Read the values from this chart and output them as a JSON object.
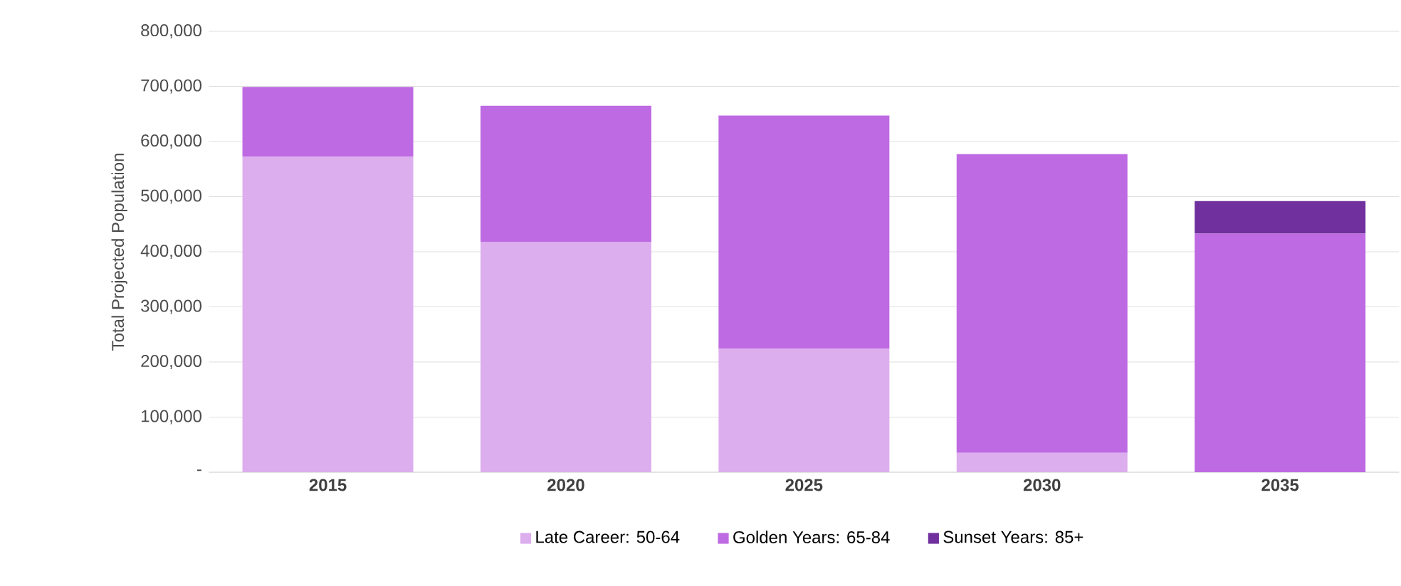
{
  "chart_data": {
    "type": "bar",
    "stacked": true,
    "ylabel": "Total Projected Population",
    "categories": [
      "2015",
      "2020",
      "2025",
      "2030",
      "2035"
    ],
    "series": [
      {
        "name": "Late Career: 50-64",
        "color": "#dcaeee",
        "values": [
          573000,
          418000,
          224000,
          35000,
          0
        ]
      },
      {
        "name": "Golden Years: 65-84",
        "color": "#be6ae2",
        "values": [
          126000,
          247000,
          423000,
          542000,
          433000
        ]
      },
      {
        "name": "Sunset Years: 85+",
        "color": "#70309d",
        "values": [
          0,
          0,
          0,
          0,
          59000
        ]
      }
    ],
    "ylim": [
      0,
      800000
    ],
    "yticks": [
      {
        "value": 0,
        "label": "-"
      },
      {
        "value": 100000,
        "label": "100,000"
      },
      {
        "value": 200000,
        "label": "200,000"
      },
      {
        "value": 300000,
        "label": "300,000"
      },
      {
        "value": 400000,
        "label": "400,000"
      },
      {
        "value": 500000,
        "label": "500,000"
      },
      {
        "value": 600000,
        "label": "600,000"
      },
      {
        "value": 700000,
        "label": "700,000"
      },
      {
        "value": 800000,
        "label": "800,000"
      }
    ],
    "grid": "y",
    "legend": "bottom"
  }
}
